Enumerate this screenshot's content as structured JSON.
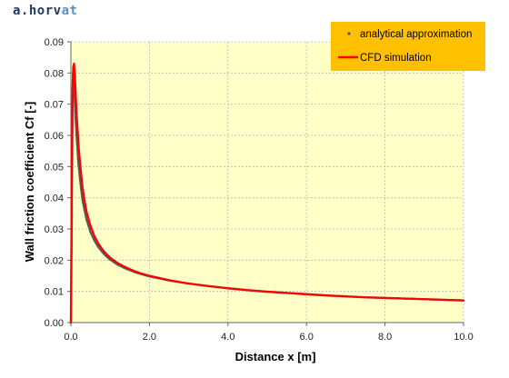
{
  "brand": {
    "prefix": "a.horv",
    "accent": "at"
  },
  "chart_data": {
    "type": "line",
    "xlabel": "Distance x [m]",
    "ylabel": "Wall friction coefficient Cf [-]",
    "xlim": [
      0,
      10
    ],
    "ylim": [
      0,
      0.09
    ],
    "x_ticks": [
      "0.0",
      "2.0",
      "4.0",
      "6.0",
      "8.0",
      "10.0"
    ],
    "y_ticks": [
      "0.00",
      "0.01",
      "0.02",
      "0.03",
      "0.04",
      "0.05",
      "0.06",
      "0.07",
      "0.08",
      "0.09"
    ],
    "grid": true,
    "legend_position": "top-right",
    "plot_background": "#ffffc8",
    "legend_background": "#ffc000",
    "series": [
      {
        "name": "analytical approximation",
        "style": "dots",
        "color": "#555555",
        "x": [
          0,
          0.02,
          0.04,
          0.06,
          0.08,
          0.1,
          0.12,
          0.15,
          0.18,
          0.2,
          0.25,
          0.3,
          0.35,
          0.4,
          0.5,
          0.6,
          0.7,
          0.8,
          0.9,
          1.0,
          1.2,
          1.4,
          1.6,
          1.8,
          2.0,
          2.5,
          3.0,
          3.5,
          4.0,
          4.5,
          5.0,
          5.5,
          6.0,
          6.5,
          7.0,
          7.5,
          8.0,
          8.5,
          9.0,
          9.5,
          10.0
        ],
        "y": [
          0,
          0.03,
          0.065,
          0.08,
          0.079,
          0.072,
          0.066,
          0.059,
          0.053,
          0.05,
          0.044,
          0.039,
          0.036,
          0.033,
          0.029,
          0.0263,
          0.0242,
          0.0226,
          0.0213,
          0.0202,
          0.0185,
          0.0173,
          0.0163,
          0.0155,
          0.0148,
          0.0135,
          0.0125,
          0.0117,
          0.011,
          0.0104,
          0.0099,
          0.0095,
          0.0091,
          0.0087,
          0.0084,
          0.0081,
          0.0079,
          0.0077,
          0.0075,
          0.0073,
          0.0071
        ]
      },
      {
        "name": "CFD simulation",
        "style": "line",
        "color": "#ff0000",
        "x": [
          0,
          0.01,
          0.02,
          0.04,
          0.06,
          0.08,
          0.1,
          0.12,
          0.15,
          0.18,
          0.2,
          0.25,
          0.3,
          0.35,
          0.4,
          0.5,
          0.6,
          0.7,
          0.8,
          0.9,
          1.0,
          1.2,
          1.4,
          1.6,
          1.8,
          2.0,
          2.5,
          3.0,
          3.5,
          4.0,
          4.5,
          5.0,
          5.5,
          6.0,
          6.5,
          7.0,
          7.5,
          8.0,
          8.5,
          9.0,
          9.5,
          10.0
        ],
        "y": [
          0,
          0.02,
          0.045,
          0.075,
          0.082,
          0.083,
          0.08,
          0.074,
          0.066,
          0.06,
          0.056,
          0.049,
          0.043,
          0.039,
          0.0355,
          0.031,
          0.0277,
          0.0253,
          0.0235,
          0.022,
          0.0208,
          0.019,
          0.0177,
          0.0166,
          0.0157,
          0.015,
          0.0136,
          0.0125,
          0.0117,
          0.011,
          0.0104,
          0.0099,
          0.0095,
          0.0091,
          0.0087,
          0.0084,
          0.0081,
          0.0079,
          0.0077,
          0.0075,
          0.0073,
          0.0071
        ]
      }
    ]
  }
}
